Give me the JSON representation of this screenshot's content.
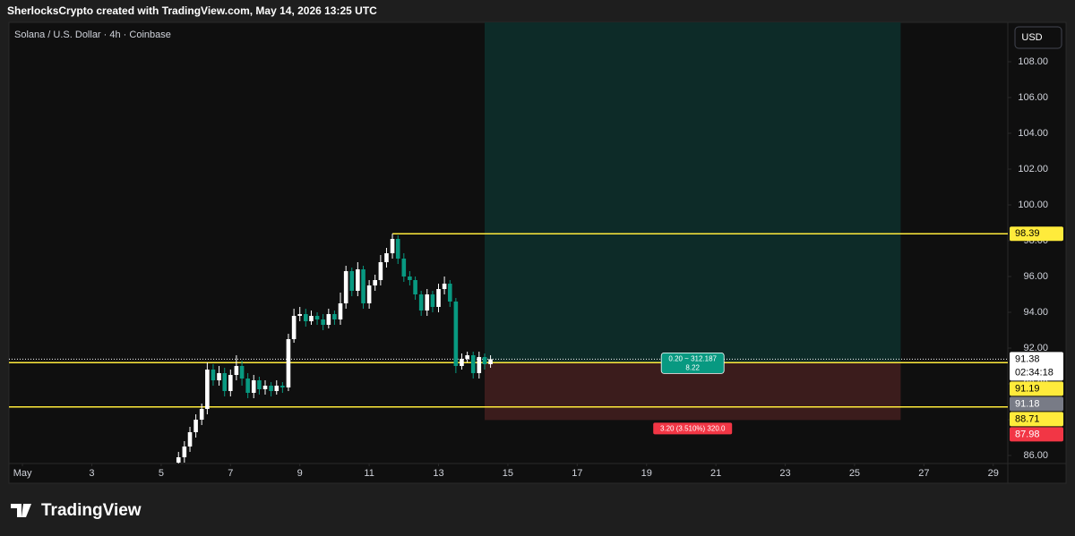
{
  "header": {
    "attribution": "SherlocksCrypto created with TradingView.com, May 14, 2026 13:25 UTC"
  },
  "chart_data": {
    "type": "candlestick",
    "title": "Solana / U.S. Dollar · 4h · Coinbase",
    "currency": "USD",
    "x": [
      5.5,
      5.67,
      5.83,
      6,
      6.17,
      6.33,
      6.5,
      6.67,
      6.83,
      7,
      7.17,
      7.33,
      7.5,
      7.67,
      7.83,
      8,
      8.17,
      8.33,
      8.5,
      8.67,
      8.83,
      9,
      9.17,
      9.33,
      9.5,
      9.67,
      9.83,
      10,
      10.17,
      10.33,
      10.5,
      10.67,
      10.83,
      11,
      11.17,
      11.33,
      11.5,
      11.67,
      11.83,
      12,
      12.17,
      12.33,
      12.5,
      12.67,
      12.83,
      13,
      13.17,
      13.33,
      13.5,
      13.67,
      13.83,
      14,
      14.17,
      14.33,
      14.5
    ],
    "open": [
      85.6,
      85.9,
      86.5,
      87.3,
      88.0,
      88.6,
      90.8,
      90.2,
      90.6,
      89.6,
      90.5,
      91.0,
      90.3,
      89.5,
      90.2,
      89.7,
      89.9,
      89.6,
      89.9,
      89.8,
      92.5,
      93.8,
      93.9,
      93.5,
      93.8,
      93.6,
      93.3,
      93.9,
      93.6,
      94.5,
      96.3,
      95.2,
      96.4,
      94.5,
      95.5,
      95.8,
      96.8,
      97.3,
      98.1,
      97.0,
      96.0,
      95.8,
      95.0,
      94.1,
      95.0,
      94.3,
      95.3,
      95.6,
      94.6,
      91.0,
      91.4,
      91.6,
      90.6,
      91.5,
      91.1
    ],
    "high": [
      86.2,
      86.8,
      87.6,
      88.3,
      88.9,
      91.2,
      91.1,
      91.0,
      90.9,
      90.8,
      91.6,
      91.3,
      90.6,
      90.5,
      90.4,
      90.2,
      90.1,
      90.2,
      90.1,
      92.8,
      94.2,
      94.3,
      94.2,
      94.1,
      94.0,
      93.9,
      94.2,
      94.1,
      95.1,
      96.6,
      96.5,
      96.8,
      96.6,
      95.8,
      96.1,
      97.2,
      97.6,
      98.39,
      98.3,
      97.3,
      96.3,
      96.0,
      95.2,
      95.3,
      95.2,
      95.6,
      96.0,
      95.8,
      94.8,
      91.7,
      91.8,
      91.8,
      91.8,
      91.7,
      91.6
    ],
    "low": [
      85.3,
      85.6,
      86.2,
      87.0,
      87.7,
      88.3,
      89.9,
      89.9,
      89.3,
      89.3,
      90.2,
      89.9,
      89.2,
      89.2,
      89.4,
      89.4,
      89.3,
      89.4,
      89.5,
      89.6,
      92.3,
      93.5,
      93.2,
      93.3,
      93.3,
      93.0,
      93.1,
      93.3,
      93.3,
      94.2,
      94.9,
      94.9,
      94.2,
      94.2,
      95.2,
      95.5,
      96.5,
      97.0,
      96.7,
      95.7,
      95.5,
      94.7,
      93.8,
      93.8,
      94.0,
      94.0,
      95.0,
      94.3,
      90.6,
      90.8,
      91.2,
      90.3,
      90.3,
      90.8,
      90.9
    ],
    "close": [
      85.9,
      86.5,
      87.3,
      88.0,
      88.6,
      90.8,
      90.2,
      90.6,
      89.6,
      90.5,
      91.0,
      90.3,
      89.5,
      90.2,
      89.7,
      89.9,
      89.6,
      89.9,
      89.8,
      92.5,
      93.8,
      93.9,
      93.5,
      93.8,
      93.6,
      93.3,
      93.9,
      93.6,
      94.5,
      96.3,
      95.2,
      96.4,
      94.5,
      95.5,
      95.8,
      96.8,
      97.3,
      98.1,
      97.0,
      96.0,
      95.8,
      95.0,
      94.1,
      95.0,
      94.3,
      95.3,
      95.6,
      94.6,
      91.0,
      91.4,
      91.6,
      90.6,
      91.5,
      91.1,
      91.38
    ],
    "up_color": "#ffffff",
    "down_color": "#089981",
    "xlim": [
      0.61,
      29.42
    ],
    "xticks": [
      {
        "value": 1,
        "label": "May"
      },
      3,
      5,
      7,
      9,
      11,
      13,
      15,
      17,
      19,
      21,
      23,
      25,
      27,
      29
    ],
    "ylim": [
      85.55,
      110.2
    ],
    "yticks": [
      {
        "value": 86,
        "label": "86.00"
      },
      {
        "value": 88,
        "label": "88.00"
      },
      {
        "value": 90,
        "label": "90.00"
      },
      {
        "value": 92,
        "label": "92.00"
      },
      {
        "value": 94,
        "label": "94.00"
      },
      {
        "value": 96,
        "label": "96.00"
      },
      {
        "value": 98,
        "label": "98.00"
      },
      {
        "value": 100,
        "label": "100.00"
      },
      {
        "value": 102,
        "label": "102.00"
      },
      {
        "value": 104,
        "label": "104.00"
      },
      {
        "value": 106,
        "label": "106.00"
      },
      {
        "value": 108,
        "label": "108.00"
      }
    ],
    "levels": [
      {
        "value": 98.39,
        "start": 11.67,
        "color": "#ffeb3b"
      },
      {
        "value": 91.19,
        "color": "#ffeb3b"
      },
      {
        "value": 88.71,
        "color": "#ffeb3b"
      }
    ],
    "position": {
      "start": 14.33,
      "end": 26.33,
      "entry": 91.18,
      "stop": 87.98,
      "target_color": "#0d2b28",
      "stop_color": "#3b1c1c",
      "target_text": "0.20 ~ 312.187",
      "target_subtext": "8.22",
      "stop_text": "3.20 (3.510%) 320.0"
    },
    "price_labels": [
      {
        "value": 98.39,
        "color": "#ffeb3b"
      },
      {
        "value": 91.38,
        "sublabel": "02:34:18",
        "color": "#ffffff",
        "style": "dotted"
      },
      {
        "value": 91.19,
        "color": "#ffeb3b"
      },
      {
        "value": 91.18,
        "color": "#787b86"
      },
      {
        "value": 88.71,
        "color": "#ffeb3b"
      },
      {
        "value": 87.98,
        "color": "#f23645"
      }
    ]
  },
  "footer": {
    "logo": "TradingView"
  }
}
